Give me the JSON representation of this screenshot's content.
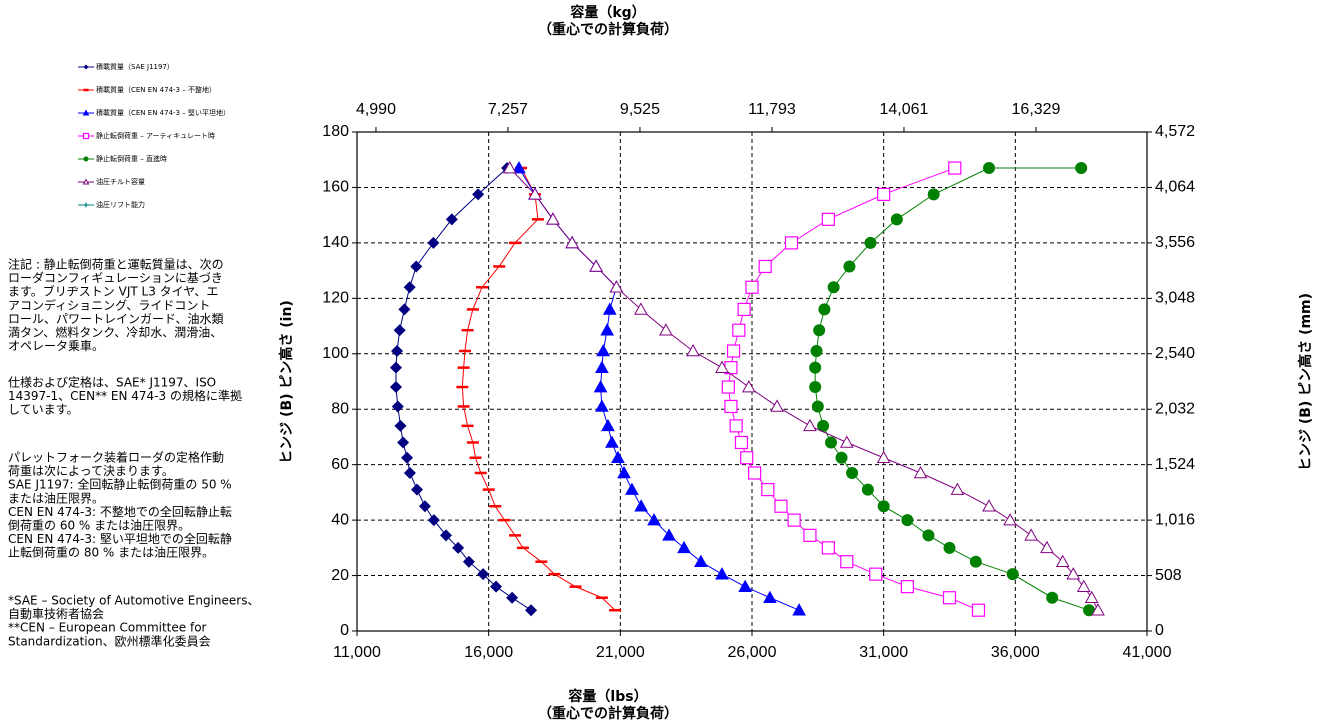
{
  "chart_data": {
    "type": "line",
    "x_title": "容量（lbs）",
    "x_subtitle": "（重心での計算負荷）",
    "x2_title": "容量（kg）",
    "x2_subtitle": "（重心での計算負荷）",
    "y_title": "ヒンジ (B) ピン高さ (in)",
    "y2_title": "ヒンジ (B) ピン高さ (mm)",
    "xlim": [
      11000,
      41000
    ],
    "xticks": [
      {
        "value": 11000,
        "label": "11,000"
      },
      {
        "value": 16000,
        "label": "16,000"
      },
      {
        "value": 21000,
        "label": "21,000"
      },
      {
        "value": 26000,
        "label": "26,000"
      },
      {
        "value": 31000,
        "label": "31,000"
      },
      {
        "value": 36000,
        "label": "36,000"
      },
      {
        "value": 41000,
        "label": "41,000"
      }
    ],
    "x2lim": [
      4664,
      18236
    ],
    "x2ticks": [
      {
        "value": 4990,
        "label": "4,990"
      },
      {
        "value": 7257,
        "label": "7,257"
      },
      {
        "value": 9525,
        "label": "9,525"
      },
      {
        "value": 11793,
        "label": "11,793"
      },
      {
        "value": 14061,
        "label": "14,061"
      },
      {
        "value": 16329,
        "label": "16,329"
      }
    ],
    "ylim": [
      0,
      180
    ],
    "yticks": [
      0,
      20,
      40,
      60,
      80,
      100,
      120,
      140,
      160,
      180
    ],
    "y2lim": [
      0,
      4572
    ],
    "y2ticks": [
      0,
      508,
      {
        "value": 1016,
        "label": "1,016"
      },
      {
        "value": 1524,
        "label": "1,524"
      },
      {
        "value": 2032,
        "label": "2,032"
      },
      {
        "value": 2540,
        "label": "2,540"
      },
      {
        "value": 3048,
        "label": "3,048"
      },
      {
        "value": 3556,
        "label": "3,556"
      },
      {
        "value": 4064,
        "label": "4,064"
      },
      {
        "value": 4572,
        "label": "4,572"
      }
    ],
    "grid": true,
    "series": [
      {
        "name": "積載質量（SAE J1197）",
        "color": "#000080",
        "marker": "diamond",
        "x": [
          17610,
          16890,
          16280,
          15790,
          15250,
          14840,
          14380,
          13920,
          13580,
          13280,
          13010,
          12900,
          12750,
          12650,
          12550,
          12480,
          12480,
          12520,
          12620,
          12800,
          13000,
          13250,
          13900,
          14600,
          15600,
          16700
        ],
        "values": [
          7.5,
          12,
          16,
          20.5,
          25,
          30,
          34.5,
          40,
          45,
          51,
          57,
          62.5,
          68,
          74,
          81,
          88,
          95,
          101,
          108.5,
          116,
          124,
          131.5,
          140,
          148.5,
          157.5,
          167
        ]
      },
      {
        "name": "積載質量（CEN EN 474-3 – 不整地）",
        "color": "#ff0000",
        "marker": "dash",
        "x": [
          20800,
          20300,
          19300,
          18500,
          18000,
          17300,
          17000,
          16600,
          16250,
          16000,
          15700,
          15500,
          15400,
          15200,
          15050,
          15000,
          15050,
          15100,
          15200,
          15400,
          15750,
          16400,
          17000,
          17870,
          17760,
          17230
        ],
        "values": [
          7.5,
          12,
          16,
          20.5,
          25,
          30,
          34.5,
          40,
          45,
          51,
          57,
          62.5,
          68,
          74,
          81,
          88,
          95,
          101,
          108.5,
          116,
          124,
          131.5,
          140,
          148.5,
          157.5,
          167
        ]
      },
      {
        "name": "積載質量（CEN EN 474-3 – 堅い平坦地）",
        "color": "#0000ff",
        "marker": "triangle",
        "x": [
          27790,
          26680,
          25740,
          24860,
          24060,
          23420,
          22850,
          22280,
          21790,
          21440,
          21140,
          20910,
          20680,
          20530,
          20300,
          20250,
          20300,
          20350,
          20500,
          20600,
          20850,
          20080,
          19170,
          18440,
          17760,
          17150
        ],
        "values": [
          7.5,
          12,
          16,
          20.5,
          25,
          30,
          34.5,
          40,
          45,
          51,
          57,
          62.5,
          68,
          74,
          81,
          88,
          95,
          101,
          108.5,
          116,
          124,
          131.5,
          140,
          148.5,
          157.5,
          167
        ]
      },
      {
        "name": "静止転倒荷重 – アーティキュレート時",
        "color": "#ff00ff",
        "marker": "square",
        "x": [
          34600,
          33500,
          31900,
          30700,
          29600,
          28900,
          28200,
          27600,
          27100,
          26600,
          26100,
          25800,
          25600,
          25400,
          25200,
          25100,
          25200,
          25300,
          25500,
          25700,
          26000,
          26500,
          27500,
          28900,
          31000,
          33700
        ],
        "values": [
          7.5,
          12,
          16,
          20.5,
          25,
          30,
          34.5,
          40,
          45,
          51,
          57,
          62.5,
          68,
          74,
          81,
          88,
          95,
          101,
          108.5,
          116,
          124,
          131.5,
          140,
          148.5,
          157.5,
          167
        ]
      },
      {
        "name": "静止転倒荷重 – 直進時",
        "color": "#008000",
        "marker": "circle",
        "x": [
          38800,
          37400,
          35900,
          34500,
          33500,
          32700,
          31900,
          31000,
          30400,
          29800,
          29400,
          29000,
          28700,
          28500,
          28400,
          28400,
          28450,
          28550,
          28750,
          29100,
          29700,
          30500,
          31500,
          32900,
          35000,
          38500
        ],
        "values": [
          7.5,
          12,
          20.5,
          25,
          30,
          34.5,
          40,
          45,
          51,
          57,
          62.5,
          68,
          74,
          81,
          88,
          95,
          101,
          108.5,
          116,
          124,
          131.5,
          140,
          148.5,
          157.5,
          167,
          167
        ]
      },
      {
        "name": "油圧チルト容量",
        "color": "#800080",
        "marker": "open-triangle",
        "x": [
          39140,
          38900,
          38600,
          38200,
          37800,
          37200,
          36600,
          35800,
          35000,
          33800,
          32400,
          31000,
          29600,
          28200,
          26950,
          25880,
          24860,
          23760,
          22730,
          21780,
          20850,
          20080,
          19170,
          18440,
          17760,
          16800
        ],
        "values": [
          7.5,
          12,
          16,
          20.5,
          25,
          30,
          34.5,
          40,
          45,
          51,
          57,
          62.5,
          68,
          74,
          81,
          88,
          95,
          101,
          108.5,
          116,
          124,
          131.5,
          140,
          148.5,
          157.5,
          167
        ]
      },
      {
        "name": "油圧リフト能力",
        "color": "#008080",
        "marker": "plus",
        "x": [],
        "values": []
      }
    ],
    "notes": [
      [
        "注記 : 静止転倒荷重と運転質量は、次の",
        "ローダコンフィギュレーションに基づき",
        "ます。ブリヂストン VJT L3 タイヤ、エ",
        "アコンディショニング、ライドコント",
        "ロール、パワートレインガード、油水類",
        "満タン、燃料タンク、冷却水、潤滑油、",
        "オペレータ乗車。"
      ],
      [
        "仕様および定格は、SAE* J1197、ISO",
        "14397-1、CEN** EN 474-3 の規格に準拠",
        "しています。"
      ],
      [
        "パレットフォーク装着ローダの定格作動",
        "荷重は次によって決まります。",
        "SAE J1197: 全回転静止転倒荷重の 50 %",
        "または油圧限界。",
        "CEN EN 474-3: 不整地での全回転静止転",
        "倒荷重の 60 % または油圧限界。",
        "CEN EN 474-3: 堅い平坦地での全回転静",
        "止転倒荷重の 80 % または油圧限界。"
      ],
      [
        "*SAE – Society of Automotive Engineers、",
        "自動車技術者協会",
        "**CEN – European Committee for",
        "Standardization、欧州標準化委員会"
      ]
    ]
  }
}
